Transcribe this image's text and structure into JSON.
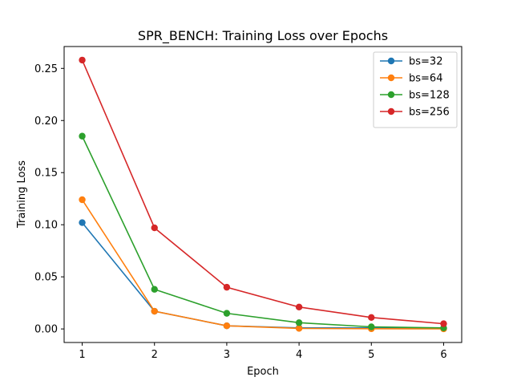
{
  "chart_data": {
    "type": "line",
    "title": "SPR_BENCH: Training Loss over Epochs",
    "xlabel": "Epoch",
    "ylabel": "Training Loss",
    "x": [
      1,
      2,
      3,
      4,
      5,
      6
    ],
    "xlim": [
      0.75,
      6.25
    ],
    "ylim": [
      -0.013,
      0.271
    ],
    "xticks": [
      1,
      2,
      3,
      4,
      5,
      6
    ],
    "yticks": [
      "0.00",
      "0.05",
      "0.10",
      "0.15",
      "0.20",
      "0.25"
    ],
    "grid": false,
    "legend_position": "top-right",
    "series": [
      {
        "name": "bs=32",
        "color": "#1f77b4",
        "values": [
          0.102,
          0.017,
          0.003,
          0.001,
          0.001,
          0.0005
        ]
      },
      {
        "name": "bs=64",
        "color": "#ff7f0e",
        "values": [
          0.124,
          0.017,
          0.003,
          0.0005,
          0.0002,
          0.0001
        ]
      },
      {
        "name": "bs=128",
        "color": "#2ca02c",
        "values": [
          0.185,
          0.038,
          0.015,
          0.006,
          0.002,
          0.001
        ]
      },
      {
        "name": "bs=256",
        "color": "#d62728",
        "values": [
          0.258,
          0.097,
          0.04,
          0.021,
          0.011,
          0.005
        ]
      }
    ]
  }
}
